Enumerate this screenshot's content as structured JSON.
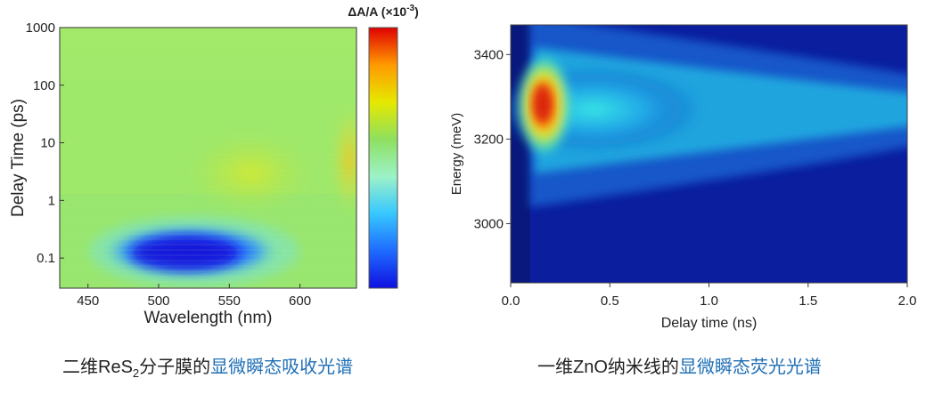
{
  "chart_data": [
    {
      "type": "heatmap",
      "xlabel": "Wavelength (nm)",
      "ylabel": "Delay Time (ps)",
      "y_scale": "log",
      "xlim": [
        430,
        640
      ],
      "ylim": [
        0.03,
        1000
      ],
      "x_ticks": [
        450,
        500,
        550,
        600
      ],
      "y_ticks": [
        {
          "value": 0.1,
          "label": "0.1"
        },
        {
          "value": 1,
          "label": "1"
        },
        {
          "value": 10,
          "label": "10"
        },
        {
          "value": 100,
          "label": "100"
        },
        {
          "value": 1000,
          "label": "1000"
        }
      ],
      "colorbar": {
        "label_main": "ΔA/A (×10",
        "label_exp": "-3",
        "label_close": ")",
        "colors": [
          "#1010e0",
          "#1e6bff",
          "#37c7ff",
          "#9cf2c8",
          "#8ee060",
          "#e6e800",
          "#ff9a00",
          "#e00000"
        ]
      },
      "features": [
        {
          "kind": "bleach",
          "center": [
            525,
            0.13
          ],
          "note": "strongest negative signal"
        },
        {
          "kind": "positive",
          "center": [
            565,
            3
          ],
          "note": "weak positive band"
        },
        {
          "kind": "positive",
          "center": [
            635,
            5
          ],
          "note": "positive at long wavelength"
        }
      ]
    },
    {
      "type": "heatmap",
      "xlabel": "Delay time (ns)",
      "ylabel": "Energy (meV)",
      "xlim": [
        0.0,
        2.0
      ],
      "ylim": [
        2860,
        3470
      ],
      "x_ticks": [
        "0.0",
        "0.5",
        "1.0",
        "1.5",
        "2.0"
      ],
      "y_ticks": [
        3000,
        3200,
        3400
      ],
      "features": [
        {
          "kind": "emission-peak",
          "center_time_ns": 0.15,
          "center_energy_mev": 3280
        },
        {
          "kind": "band-center",
          "energy_mev": 3270,
          "note": "emission band narrows with delay"
        }
      ]
    }
  ],
  "captions": {
    "left_prefix": "二维ReS",
    "left_sub": "2",
    "left_middle": "分子膜的",
    "left_blue": "显微瞬态吸收光谱",
    "right_black": "一维ZnO纳米线的",
    "right_blue": "显微瞬态荧光光谱"
  }
}
